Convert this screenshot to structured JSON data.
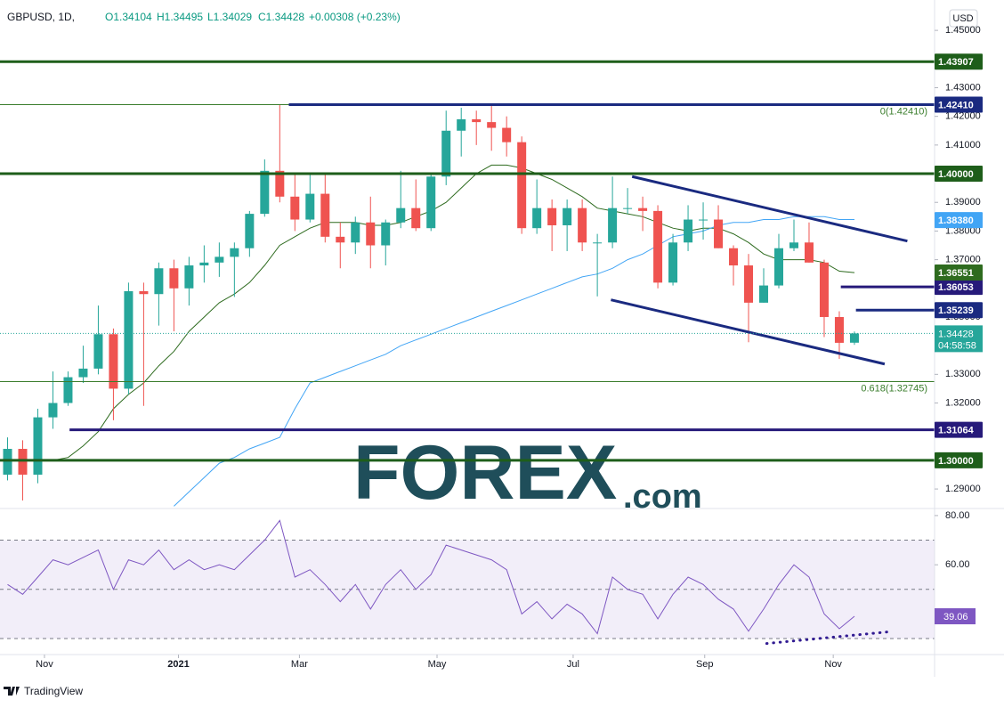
{
  "header": {
    "symbol": "GBPUSD, 1D,",
    "open": "O1.34104",
    "high": "H1.34495",
    "low": "L1.34029",
    "close": "C1.34428",
    "change": "+0.00308 (+0.23%)"
  },
  "currency": "USD",
  "footer": "TradingView",
  "watermark": {
    "main": "FOREX",
    "suffix": ".com"
  },
  "chart_data": [
    {
      "type": "candlestick",
      "up_color": "#26a69a",
      "down_color": "#ef5350",
      "open": [
        1.295,
        1.304,
        1.295,
        1.315,
        1.32,
        1.329,
        1.332,
        1.344,
        1.325,
        1.359,
        1.358,
        1.367,
        1.36,
        1.368,
        1.369,
        1.371,
        1.374,
        1.386,
        1.401,
        1.392,
        1.384,
        1.393,
        1.378,
        1.376,
        1.383,
        1.375,
        1.383,
        1.388,
        1.381,
        1.399,
        1.415,
        1.419,
        1.418,
        1.416,
        1.411,
        1.381,
        1.388,
        1.382,
        1.388,
        1.376,
        1.376,
        1.388,
        1.388,
        1.387,
        1.362,
        1.376,
        1.384,
        1.384,
        1.374,
        1.368,
        1.355,
        1.361,
        1.374,
        1.376,
        1.369,
        1.35,
        1.34104
      ],
      "high": [
        1.308,
        1.307,
        1.318,
        1.331,
        1.331,
        1.34,
        1.354,
        1.346,
        1.362,
        1.362,
        1.369,
        1.37,
        1.371,
        1.375,
        1.376,
        1.376,
        1.387,
        1.405,
        1.4241,
        1.4,
        1.4,
        1.4,
        1.383,
        1.385,
        1.392,
        1.384,
        1.401,
        1.398,
        1.4,
        1.422,
        1.423,
        1.422,
        1.424,
        1.42,
        1.413,
        1.398,
        1.391,
        1.391,
        1.391,
        1.379,
        1.399,
        1.395,
        1.392,
        1.389,
        1.379,
        1.389,
        1.39,
        1.389,
        1.375,
        1.372,
        1.367,
        1.379,
        1.384,
        1.383,
        1.37,
        1.352,
        1.34495
      ],
      "low": [
        1.293,
        1.286,
        1.292,
        1.311,
        1.319,
        1.327,
        1.33,
        1.314,
        1.323,
        1.319,
        1.347,
        1.345,
        1.354,
        1.362,
        1.364,
        1.357,
        1.371,
        1.385,
        1.39,
        1.38,
        1.383,
        1.376,
        1.367,
        1.372,
        1.367,
        1.368,
        1.381,
        1.38,
        1.38,
        1.396,
        1.406,
        1.41,
        1.408,
        1.406,
        1.379,
        1.379,
        1.373,
        1.373,
        1.373,
        1.3572,
        1.374,
        1.386,
        1.38,
        1.36,
        1.361,
        1.373,
        1.377,
        1.374,
        1.361,
        1.3412,
        1.355,
        1.36,
        1.373,
        1.369,
        1.343,
        1.3354,
        1.34029
      ],
      "close": [
        1.304,
        1.295,
        1.315,
        1.32,
        1.329,
        1.332,
        1.344,
        1.325,
        1.359,
        1.358,
        1.367,
        1.36,
        1.368,
        1.369,
        1.371,
        1.374,
        1.386,
        1.401,
        1.392,
        1.384,
        1.393,
        1.378,
        1.376,
        1.383,
        1.375,
        1.383,
        1.388,
        1.381,
        1.399,
        1.415,
        1.419,
        1.418,
        1.416,
        1.411,
        1.381,
        1.388,
        1.382,
        1.388,
        1.376,
        1.376,
        1.388,
        1.388,
        1.387,
        1.362,
        1.376,
        1.384,
        1.384,
        1.374,
        1.368,
        1.355,
        1.361,
        1.374,
        1.376,
        1.369,
        1.35,
        1.341,
        1.34428
      ],
      "series": [
        {
          "color": "#2e6b1f",
          "tag": {
            "value": 1.36551,
            "label": "1.36551"
          },
          "values": [
            null,
            null,
            null,
            1.3,
            1.301,
            1.305,
            1.31,
            1.318,
            1.323,
            1.327,
            1.333,
            1.338,
            1.345,
            1.35,
            1.355,
            1.358,
            1.362,
            1.368,
            1.375,
            1.378,
            1.381,
            1.383,
            1.383,
            1.383,
            1.382,
            1.382,
            1.383,
            1.385,
            1.387,
            1.39,
            1.395,
            1.4,
            1.403,
            1.403,
            1.402,
            1.4,
            1.398,
            1.395,
            1.392,
            1.388,
            1.387,
            1.386,
            1.385,
            1.383,
            1.381,
            1.38,
            1.381,
            1.381,
            1.379,
            1.376,
            1.372,
            1.37,
            1.37,
            1.37,
            1.369,
            1.366,
            1.3655
          ]
        },
        {
          "color": "#42a5f5",
          "tag": {
            "value": 1.3838,
            "label": "1.38380"
          },
          "values": [
            null,
            null,
            null,
            null,
            null,
            null,
            null,
            null,
            null,
            null,
            null,
            1.284,
            1.289,
            1.294,
            1.299,
            1.301,
            1.304,
            1.306,
            1.308,
            1.318,
            1.327,
            1.329,
            1.331,
            1.333,
            1.335,
            1.337,
            1.34,
            1.342,
            1.344,
            1.346,
            1.348,
            1.35,
            1.352,
            1.354,
            1.356,
            1.358,
            1.36,
            1.362,
            1.364,
            1.365,
            1.367,
            1.37,
            1.372,
            1.375,
            1.378,
            1.379,
            1.38,
            1.382,
            1.383,
            1.383,
            1.384,
            1.384,
            1.385,
            1.385,
            1.385,
            1.384,
            1.384
          ]
        }
      ],
      "levels": [
        {
          "value": 1.43907,
          "label": "1.43907",
          "color": "#1e5e1a"
        },
        {
          "value": 1.4241,
          "label": "1.42410",
          "color": "#1a2a80",
          "start": 18.6
        },
        {
          "value": 1.4,
          "label": "1.40000",
          "color": "#1e5e1a"
        },
        {
          "value": 1.36053,
          "label": "1.36053",
          "color": "#261a7a",
          "start": 55.1
        },
        {
          "value": 1.35239,
          "label": "1.35239",
          "color": "#1a2a80",
          "start": 56.1
        },
        {
          "value": 1.31064,
          "label": "1.31064",
          "color": "#261a7a",
          "start": 4.1
        },
        {
          "value": 1.3,
          "label": "1.30000",
          "color": "#1e5e1a"
        }
      ],
      "fib_levels": [
        {
          "value": 1.4241,
          "label": "0(1.42410)"
        },
        {
          "value": 1.32745,
          "label": "0.618(1.32745)"
        }
      ],
      "trendlines": [
        {
          "x": [
            41.3,
            59.5
          ],
          "values": [
            1.399,
            1.3765
          ],
          "color": "#1a2a80"
        },
        {
          "x": [
            39.9,
            58.0
          ],
          "values": [
            1.356,
            1.3336
          ],
          "color": "#1a2a80"
        }
      ],
      "last_price": {
        "value": 1.34428,
        "label": "1.34428",
        "color": "#26a69a"
      },
      "countdown": "04:58:58",
      "xlim": [
        -0.5,
        61.3
      ],
      "xticks": [
        {
          "value": 2.44,
          "label": "Nov"
        },
        {
          "value": 11.3,
          "label": "2021"
        },
        {
          "value": 19.3,
          "label": "Mar"
        },
        {
          "value": 28.4,
          "label": "May"
        },
        {
          "value": 37.4,
          "label": "Jul"
        },
        {
          "value": 46.1,
          "label": "Sep"
        },
        {
          "value": 54.6,
          "label": "Nov"
        }
      ],
      "ylim": [
        1.2835,
        1.4606
      ],
      "yticks": [
        {
          "value": 1.29,
          "label": "1.29000"
        },
        {
          "value": 1.3,
          "label": "1.30000"
        },
        {
          "value": 1.31,
          "label": "1.31000"
        },
        {
          "value": 1.32,
          "label": "1.32000"
        },
        {
          "value": 1.33,
          "label": "1.33000"
        },
        {
          "value": 1.34,
          "label": "1.34000"
        },
        {
          "value": 1.35,
          "label": "1.35000"
        },
        {
          "value": 1.36,
          "label": "1.36000"
        },
        {
          "value": 1.37,
          "label": "1.37000"
        },
        {
          "value": 1.38,
          "label": "1.38000"
        },
        {
          "value": 1.39,
          "label": "1.39000"
        },
        {
          "value": 1.4,
          "label": "1.40000"
        },
        {
          "value": 1.41,
          "label": "1.41000"
        },
        {
          "value": 1.42,
          "label": "1.42000"
        },
        {
          "value": 1.43,
          "label": "1.43000"
        },
        {
          "value": 1.44,
          "label": "1.44000"
        },
        {
          "value": 1.45,
          "label": "1.45000"
        }
      ]
    },
    {
      "type": "line",
      "color": "#7e57c2",
      "values": [
        52,
        48,
        55,
        62,
        60,
        63,
        66,
        50,
        62,
        60,
        66,
        58,
        62,
        58,
        60,
        58,
        64,
        70,
        78,
        55,
        58,
        52,
        45,
        52,
        42,
        52,
        58,
        50,
        56,
        68,
        66,
        64,
        62,
        58,
        40,
        45,
        38,
        44,
        40,
        32,
        55,
        50,
        48,
        38,
        48,
        55,
        52,
        46,
        42,
        33,
        42,
        52,
        60,
        55,
        40,
        34,
        39.06
      ],
      "bands": [
        30,
        50,
        70
      ],
      "trendlines": [
        {
          "x": [
            50.2,
            58.2
          ],
          "values": [
            28,
            32.7
          ],
          "color": "#311b92"
        }
      ],
      "ylim": [
        23.5,
        82.5
      ],
      "yticks": [
        {
          "value": 60,
          "label": "60.00"
        },
        {
          "value": 80,
          "label": "80.00"
        }
      ]
    }
  ]
}
